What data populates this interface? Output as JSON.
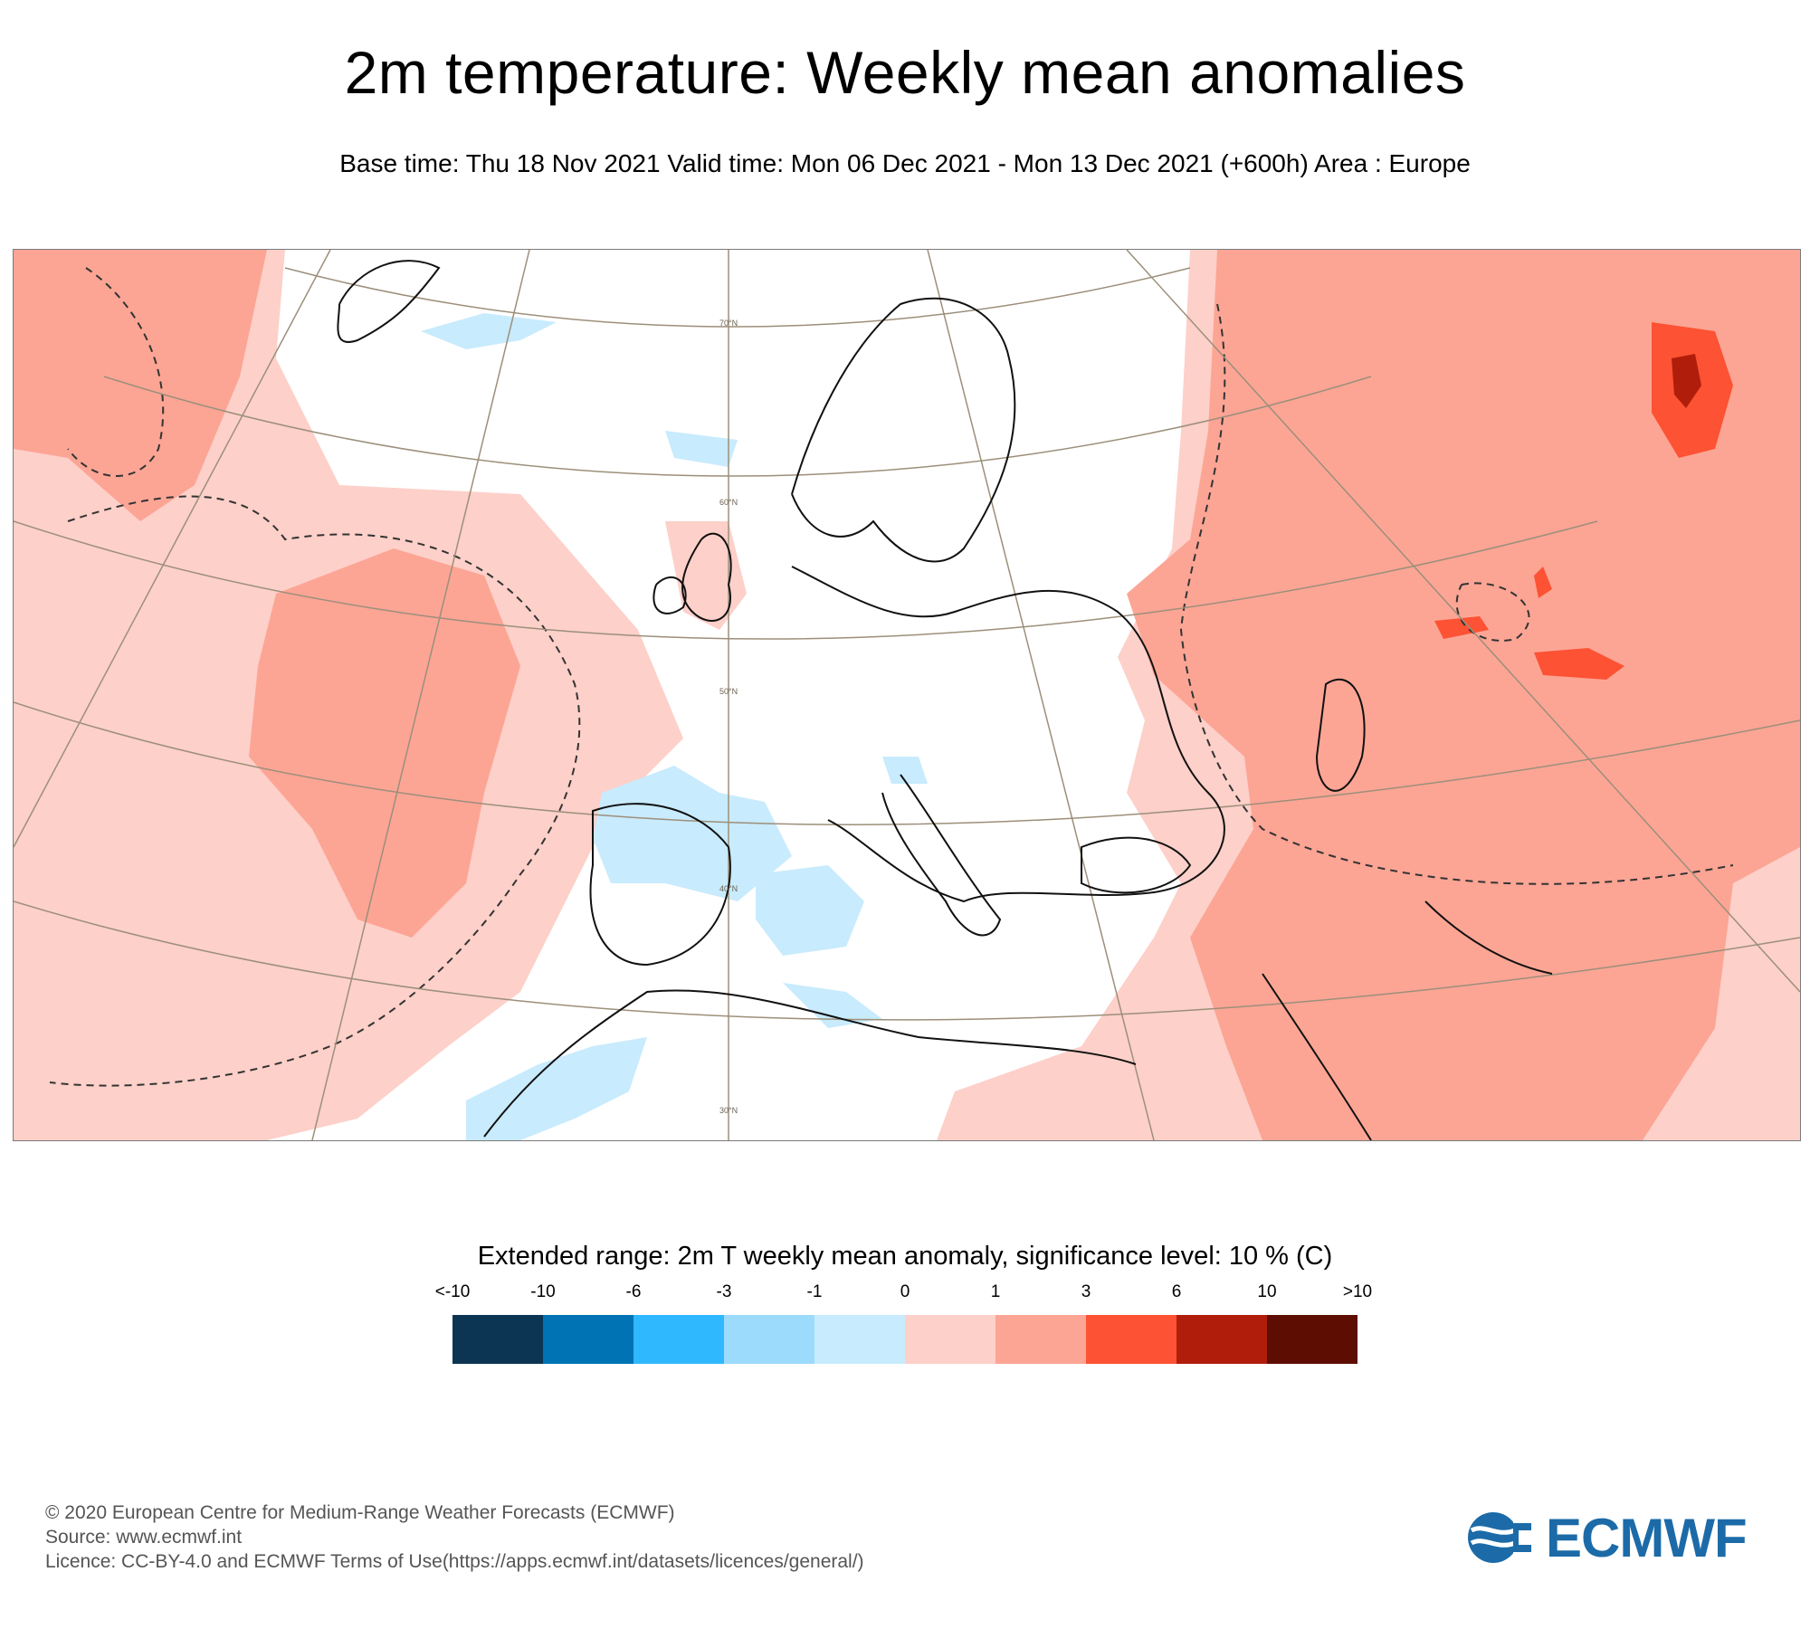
{
  "title": "2m temperature: Weekly mean anomalies",
  "subtitle": "Base time: Thu 18 Nov 2021 Valid time: Mon 06 Dec 2021 - Mon 13 Dec 2021 (+600h) Area : Europe",
  "map": {
    "latitude_labels": [
      "70°N",
      "60°N",
      "50°N",
      "40°N",
      "30°N"
    ],
    "colors": {
      "warm1": "#fdd0c9",
      "warm2": "#fca595",
      "warm3": "#fd5233",
      "warm4": "#b01e0b",
      "cool1": "#c8ebfd",
      "cool2": "#9ddbfd",
      "coast": "#111111",
      "graticule": "#9c8f7a",
      "significance": "#333333"
    }
  },
  "legend": {
    "title": "Extended range: 2m T weekly mean anomaly, significance level: 10 % (C)",
    "tick_labels": [
      "<-10",
      "-10",
      "-6",
      "-3",
      "-1",
      "0",
      "1",
      "3",
      "6",
      "10",
      ">10"
    ],
    "segment_colors": [
      "#0b3552",
      "#0073b4",
      "#2fb8fe",
      "#9ddbfd",
      "#c8ebfd",
      "#fdd0c9",
      "#fca595",
      "#fd5233",
      "#b01e0b",
      "#5e0d03"
    ]
  },
  "footer": {
    "copyright": "© 2020 European Centre for Medium-Range Weather Forecasts (ECMWF)",
    "source": "Source: www.ecmwf.int",
    "licence": "Licence: CC-BY-4.0 and ECMWF Terms of Use(https://apps.ecmwf.int/datasets/licences/general/)"
  },
  "logo": {
    "text": "ECMWF",
    "color": "#1c6ba8"
  }
}
